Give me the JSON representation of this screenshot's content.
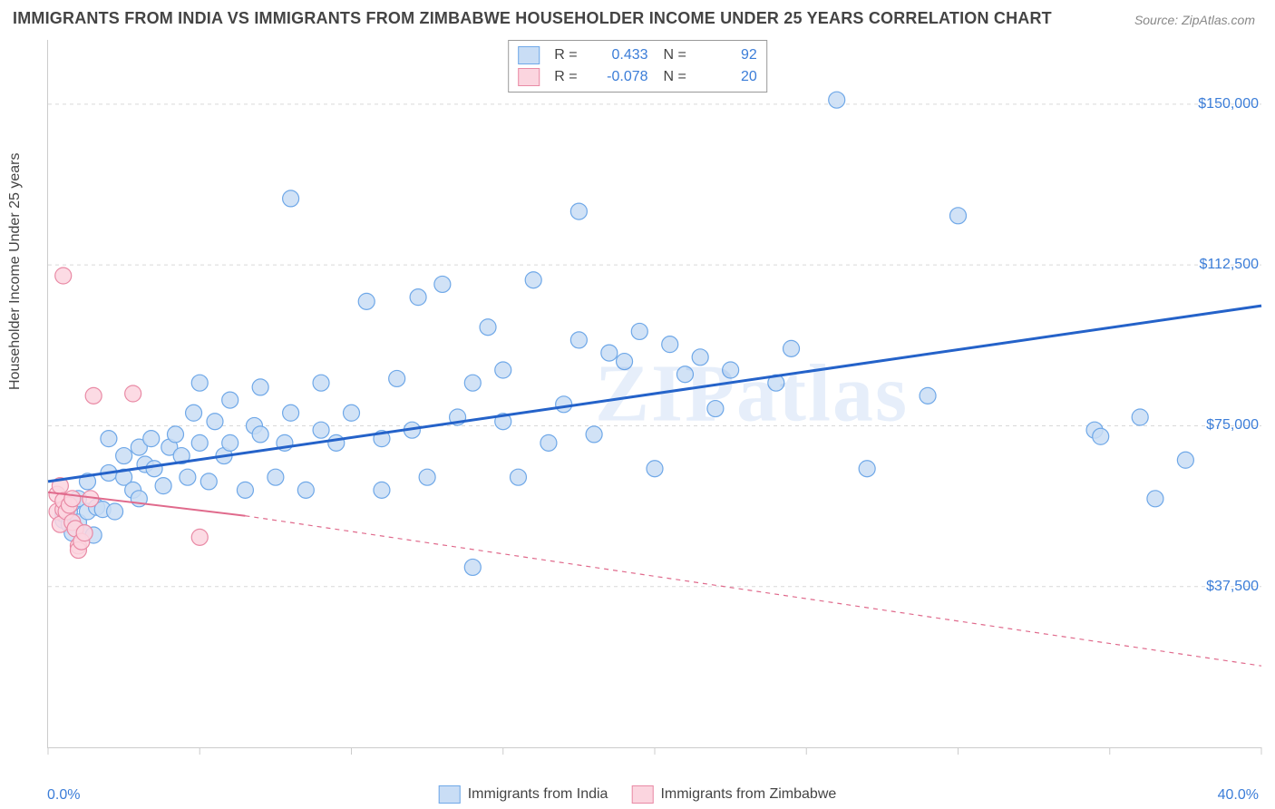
{
  "title": "IMMIGRANTS FROM INDIA VS IMMIGRANTS FROM ZIMBABWE HOUSEHOLDER INCOME UNDER 25 YEARS CORRELATION CHART",
  "source": "Source: ZipAtlas.com",
  "watermark": "ZIPatlas",
  "ylabel": "Householder Income Under 25 years",
  "chart": {
    "type": "scatter",
    "xlim": [
      0,
      40
    ],
    "ylim": [
      0,
      165000
    ],
    "yticks": [
      37500,
      75000,
      112500,
      150000
    ],
    "ytick_labels": [
      "$37,500",
      "$75,000",
      "$112,500",
      "$150,000"
    ],
    "xticks": [
      0,
      5,
      10,
      15,
      20,
      25,
      30,
      35,
      40
    ],
    "x_axis_label_left": "0.0%",
    "x_axis_label_right": "40.0%",
    "grid_color": "#d9d9d9",
    "background_color": "#ffffff",
    "marker_radius": 9,
    "series": [
      {
        "name": "Immigrants from India",
        "fill": "#c9ddf5",
        "stroke": "#6fa8e8",
        "trend_color": "#2462c9",
        "trend_width": 3,
        "trend_dash": "none",
        "trend_extrapolate_dash": "none",
        "R": "0.433",
        "N": "92",
        "trend": {
          "x1": 0,
          "y1": 62000,
          "x2": 40,
          "y2": 103000
        },
        "points": [
          [
            0.5,
            53000
          ],
          [
            0.5,
            54500
          ],
          [
            0.7,
            52000
          ],
          [
            0.7,
            55000
          ],
          [
            0.8,
            50000
          ],
          [
            0.8,
            57000
          ],
          [
            1.0,
            52500
          ],
          [
            1.0,
            58000
          ],
          [
            1.2,
            50000
          ],
          [
            1.3,
            55000
          ],
          [
            1.3,
            62000
          ],
          [
            1.5,
            49500
          ],
          [
            1.6,
            56000
          ],
          [
            1.8,
            55500
          ],
          [
            2.0,
            64000
          ],
          [
            2.0,
            72000
          ],
          [
            2.2,
            55000
          ],
          [
            2.5,
            63000
          ],
          [
            2.5,
            68000
          ],
          [
            2.8,
            60000
          ],
          [
            3.0,
            70000
          ],
          [
            3.0,
            58000
          ],
          [
            3.2,
            66000
          ],
          [
            3.4,
            72000
          ],
          [
            3.5,
            65000
          ],
          [
            3.8,
            61000
          ],
          [
            4.0,
            70000
          ],
          [
            4.2,
            73000
          ],
          [
            4.4,
            68000
          ],
          [
            4.6,
            63000
          ],
          [
            4.8,
            78000
          ],
          [
            5.0,
            71000
          ],
          [
            5.0,
            85000
          ],
          [
            5.3,
            62000
          ],
          [
            5.5,
            76000
          ],
          [
            5.8,
            68000
          ],
          [
            6.0,
            71000
          ],
          [
            6.0,
            81000
          ],
          [
            6.5,
            60000
          ],
          [
            6.8,
            75000
          ],
          [
            7.0,
            73000
          ],
          [
            7.0,
            84000
          ],
          [
            7.5,
            63000
          ],
          [
            7.8,
            71000
          ],
          [
            8.0,
            78000
          ],
          [
            8.0,
            128000
          ],
          [
            8.5,
            60000
          ],
          [
            9.0,
            74000
          ],
          [
            9.0,
            85000
          ],
          [
            9.5,
            71000
          ],
          [
            10.0,
            78000
          ],
          [
            10.5,
            104000
          ],
          [
            11.0,
            60000
          ],
          [
            11.0,
            72000
          ],
          [
            11.5,
            86000
          ],
          [
            12.0,
            74000
          ],
          [
            12.2,
            105000
          ],
          [
            12.5,
            63000
          ],
          [
            13.0,
            108000
          ],
          [
            13.5,
            77000
          ],
          [
            14.0,
            42000
          ],
          [
            14.0,
            85000
          ],
          [
            14.5,
            98000
          ],
          [
            15.0,
            76000
          ],
          [
            15.0,
            88000
          ],
          [
            15.5,
            63000
          ],
          [
            16.0,
            109000
          ],
          [
            16.5,
            71000
          ],
          [
            17.0,
            80000
          ],
          [
            17.5,
            125000
          ],
          [
            17.5,
            95000
          ],
          [
            18.0,
            73000
          ],
          [
            18.5,
            92000
          ],
          [
            19.0,
            90000
          ],
          [
            19.5,
            97000
          ],
          [
            20.0,
            65000
          ],
          [
            20.5,
            94000
          ],
          [
            21.0,
            87000
          ],
          [
            21.5,
            91000
          ],
          [
            22.0,
            79000
          ],
          [
            22.5,
            88000
          ],
          [
            24.0,
            85000
          ],
          [
            24.5,
            93000
          ],
          [
            26.0,
            151000
          ],
          [
            27.0,
            65000
          ],
          [
            29.0,
            82000
          ],
          [
            30.0,
            124000
          ],
          [
            34.5,
            74000
          ],
          [
            34.7,
            72500
          ],
          [
            36.0,
            77000
          ],
          [
            36.5,
            58000
          ],
          [
            37.5,
            67000
          ]
        ]
      },
      {
        "name": "Immigrants from Zimbabwe",
        "fill": "#fbd5df",
        "stroke": "#e98aa5",
        "trend_color": "#e06a8c",
        "trend_width": 2,
        "trend_dash": "none",
        "trend_extrapolate_dash": "5,5",
        "R": "-0.078",
        "N": "20",
        "trend": {
          "x1": 0,
          "y1": 59500,
          "x2": 6.5,
          "y2": 54000
        },
        "trend_extrapolate": {
          "x1": 6.5,
          "y1": 54000,
          "x2": 40,
          "y2": 19000
        },
        "points": [
          [
            0.3,
            55000
          ],
          [
            0.3,
            59000
          ],
          [
            0.4,
            52000
          ],
          [
            0.4,
            61000
          ],
          [
            0.5,
            55500
          ],
          [
            0.5,
            57500
          ],
          [
            0.6,
            55000
          ],
          [
            0.7,
            56500
          ],
          [
            0.8,
            52500
          ],
          [
            0.8,
            58000
          ],
          [
            0.9,
            51000
          ],
          [
            1.0,
            47000
          ],
          [
            1.0,
            46000
          ],
          [
            1.1,
            48000
          ],
          [
            1.2,
            50000
          ],
          [
            1.4,
            58000
          ],
          [
            0.5,
            110000
          ],
          [
            1.5,
            82000
          ],
          [
            2.8,
            82500
          ],
          [
            5.0,
            49000
          ]
        ]
      }
    ]
  },
  "bottom_legend": [
    {
      "label": "Immigrants from India",
      "fill": "#c9ddf5",
      "stroke": "#6fa8e8"
    },
    {
      "label": "Immigrants from Zimbabwe",
      "fill": "#fbd5df",
      "stroke": "#e98aa5"
    }
  ]
}
